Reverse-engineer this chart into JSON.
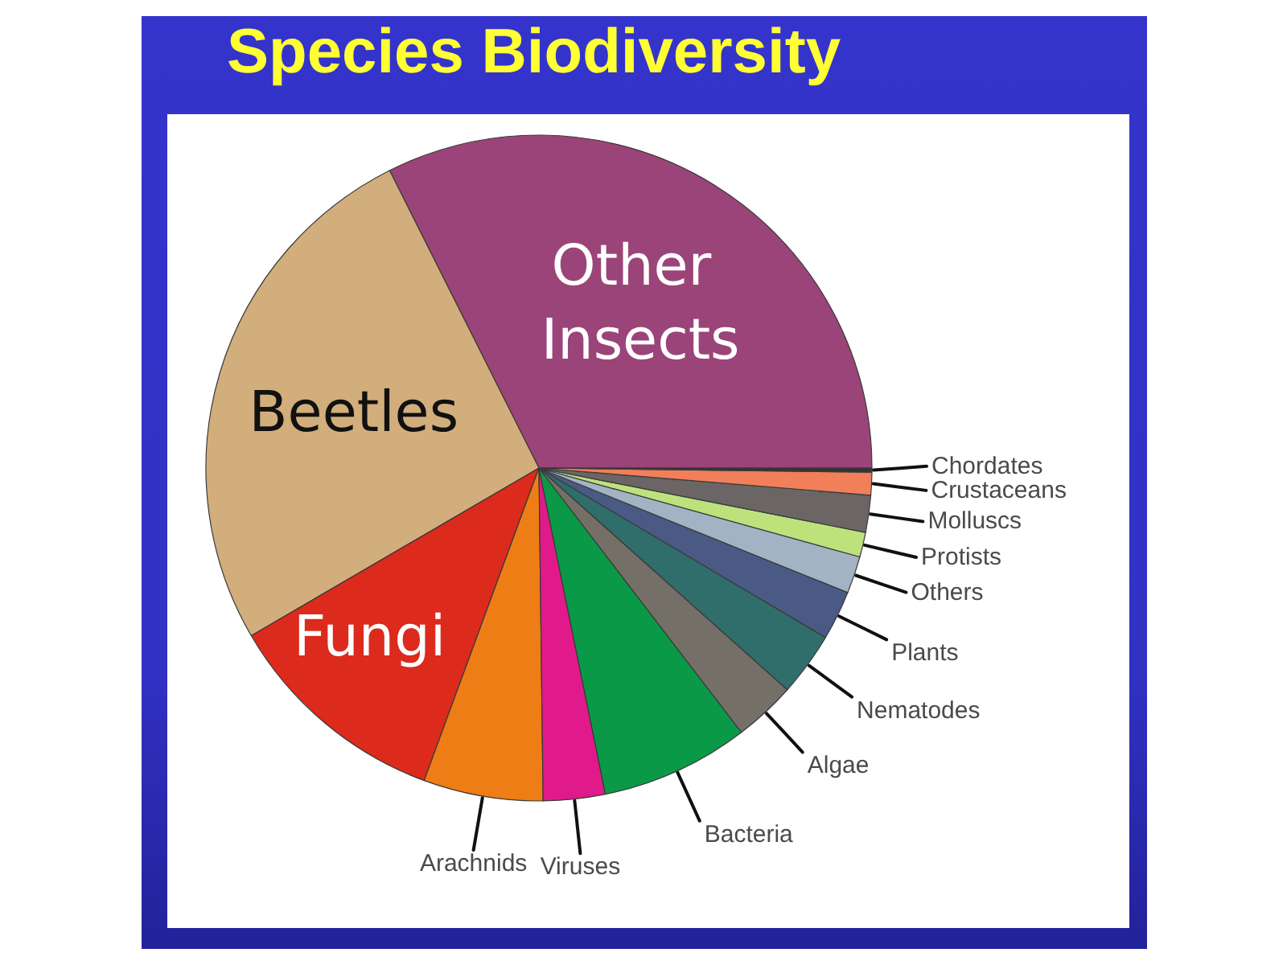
{
  "chart_data": {
    "type": "pie",
    "title": "Species Biodiversity",
    "categories": [
      "Other Insects",
      "Beetles",
      "Fungi",
      "Arachnids",
      "Viruses",
      "Bacteria",
      "Algae",
      "Nematodes",
      "Plants",
      "Others",
      "Protists",
      "Molluscs",
      "Crustaceans",
      "Chordates"
    ],
    "values": [
      32.4,
      26.0,
      11.0,
      5.8,
      3.0,
      7.2,
      3.0,
      3.1,
      2.4,
      1.8,
      1.2,
      1.8,
      1.1,
      0.2
    ],
    "colors": [
      "#9b4479",
      "#d2ae7c",
      "#dc2a1d",
      "#ef7d16",
      "#e01a8a",
      "#0a9a47",
      "#757067",
      "#2f6e6a",
      "#4a5a85",
      "#a2b4c4",
      "#bde27c",
      "#6b6565",
      "#f07f5a",
      "#333333"
    ]
  }
}
